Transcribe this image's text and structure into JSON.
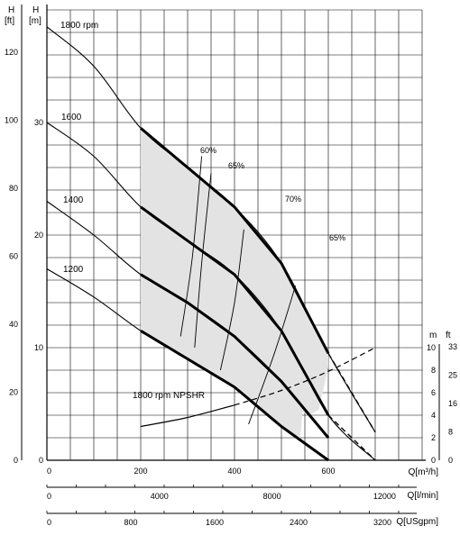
{
  "chart_data": {
    "type": "line",
    "title": "",
    "axes": {
      "h_ft_unit": "[ft]",
      "h_ft_label": "H",
      "h_m_unit": "[m]",
      "h_m_label": "H",
      "x_m3h_label": "Q[m³/h]",
      "x_lmin_label": "Q[l/min]",
      "x_usgpm_label": "Q[USgpm]",
      "npsh_m_label": "m",
      "npsh_ft_label": "ft",
      "xlim_m3h": [
        0,
        800
      ],
      "ylim_m": [
        0,
        40
      ]
    },
    "ticks": {
      "h_ft": [
        "0",
        "20",
        "40",
        "60",
        "80",
        "100",
        "120"
      ],
      "h_m": [
        "0",
        "10",
        "20",
        "30"
      ],
      "x_m3h": [
        "0",
        "200",
        "400",
        "600"
      ],
      "x_lmin": [
        "0",
        "4000",
        "8000",
        "12000"
      ],
      "x_usgpm": [
        "0",
        "800",
        "1600",
        "2400",
        "3200"
      ],
      "npsh_m": [
        "0",
        "2",
        "4",
        "6",
        "8",
        "10"
      ],
      "npsh_ft": [
        "0",
        "8",
        "16",
        "25",
        "33"
      ]
    },
    "series": [
      {
        "name": "1800 rpm",
        "x": [
          0,
          100,
          200,
          300,
          400,
          500,
          600,
          700
        ],
        "y": [
          38.5,
          35.0,
          29.5,
          26.0,
          22.5,
          17.5,
          9.5,
          2.5
        ]
      },
      {
        "name": "1600",
        "x": [
          0,
          100,
          200,
          300,
          400,
          500,
          600,
          700
        ],
        "y": [
          30.0,
          27.0,
          22.5,
          19.5,
          16.5,
          11.5,
          4.0,
          0
        ]
      },
      {
        "name": "1400",
        "x": [
          0,
          100,
          200,
          300,
          400,
          500,
          600
        ],
        "y": [
          23.0,
          20.0,
          16.5,
          14.0,
          11.0,
          7.0,
          2.0
        ]
      },
      {
        "name": "1200",
        "x": [
          0,
          100,
          200,
          300,
          400,
          500,
          600
        ],
        "y": [
          17.0,
          14.5,
          11.5,
          9.0,
          6.5,
          3.0,
          0
        ]
      },
      {
        "name": "1800 rpm NPSHR",
        "unit": "m",
        "x": [
          200,
          300,
          400,
          500,
          600,
          700
        ],
        "y": [
          3.0,
          3.8,
          4.9,
          6.2,
          7.9,
          10.0
        ]
      }
    ],
    "efficiency_labels": [
      "60%",
      "65%",
      "70%",
      "65%"
    ]
  }
}
